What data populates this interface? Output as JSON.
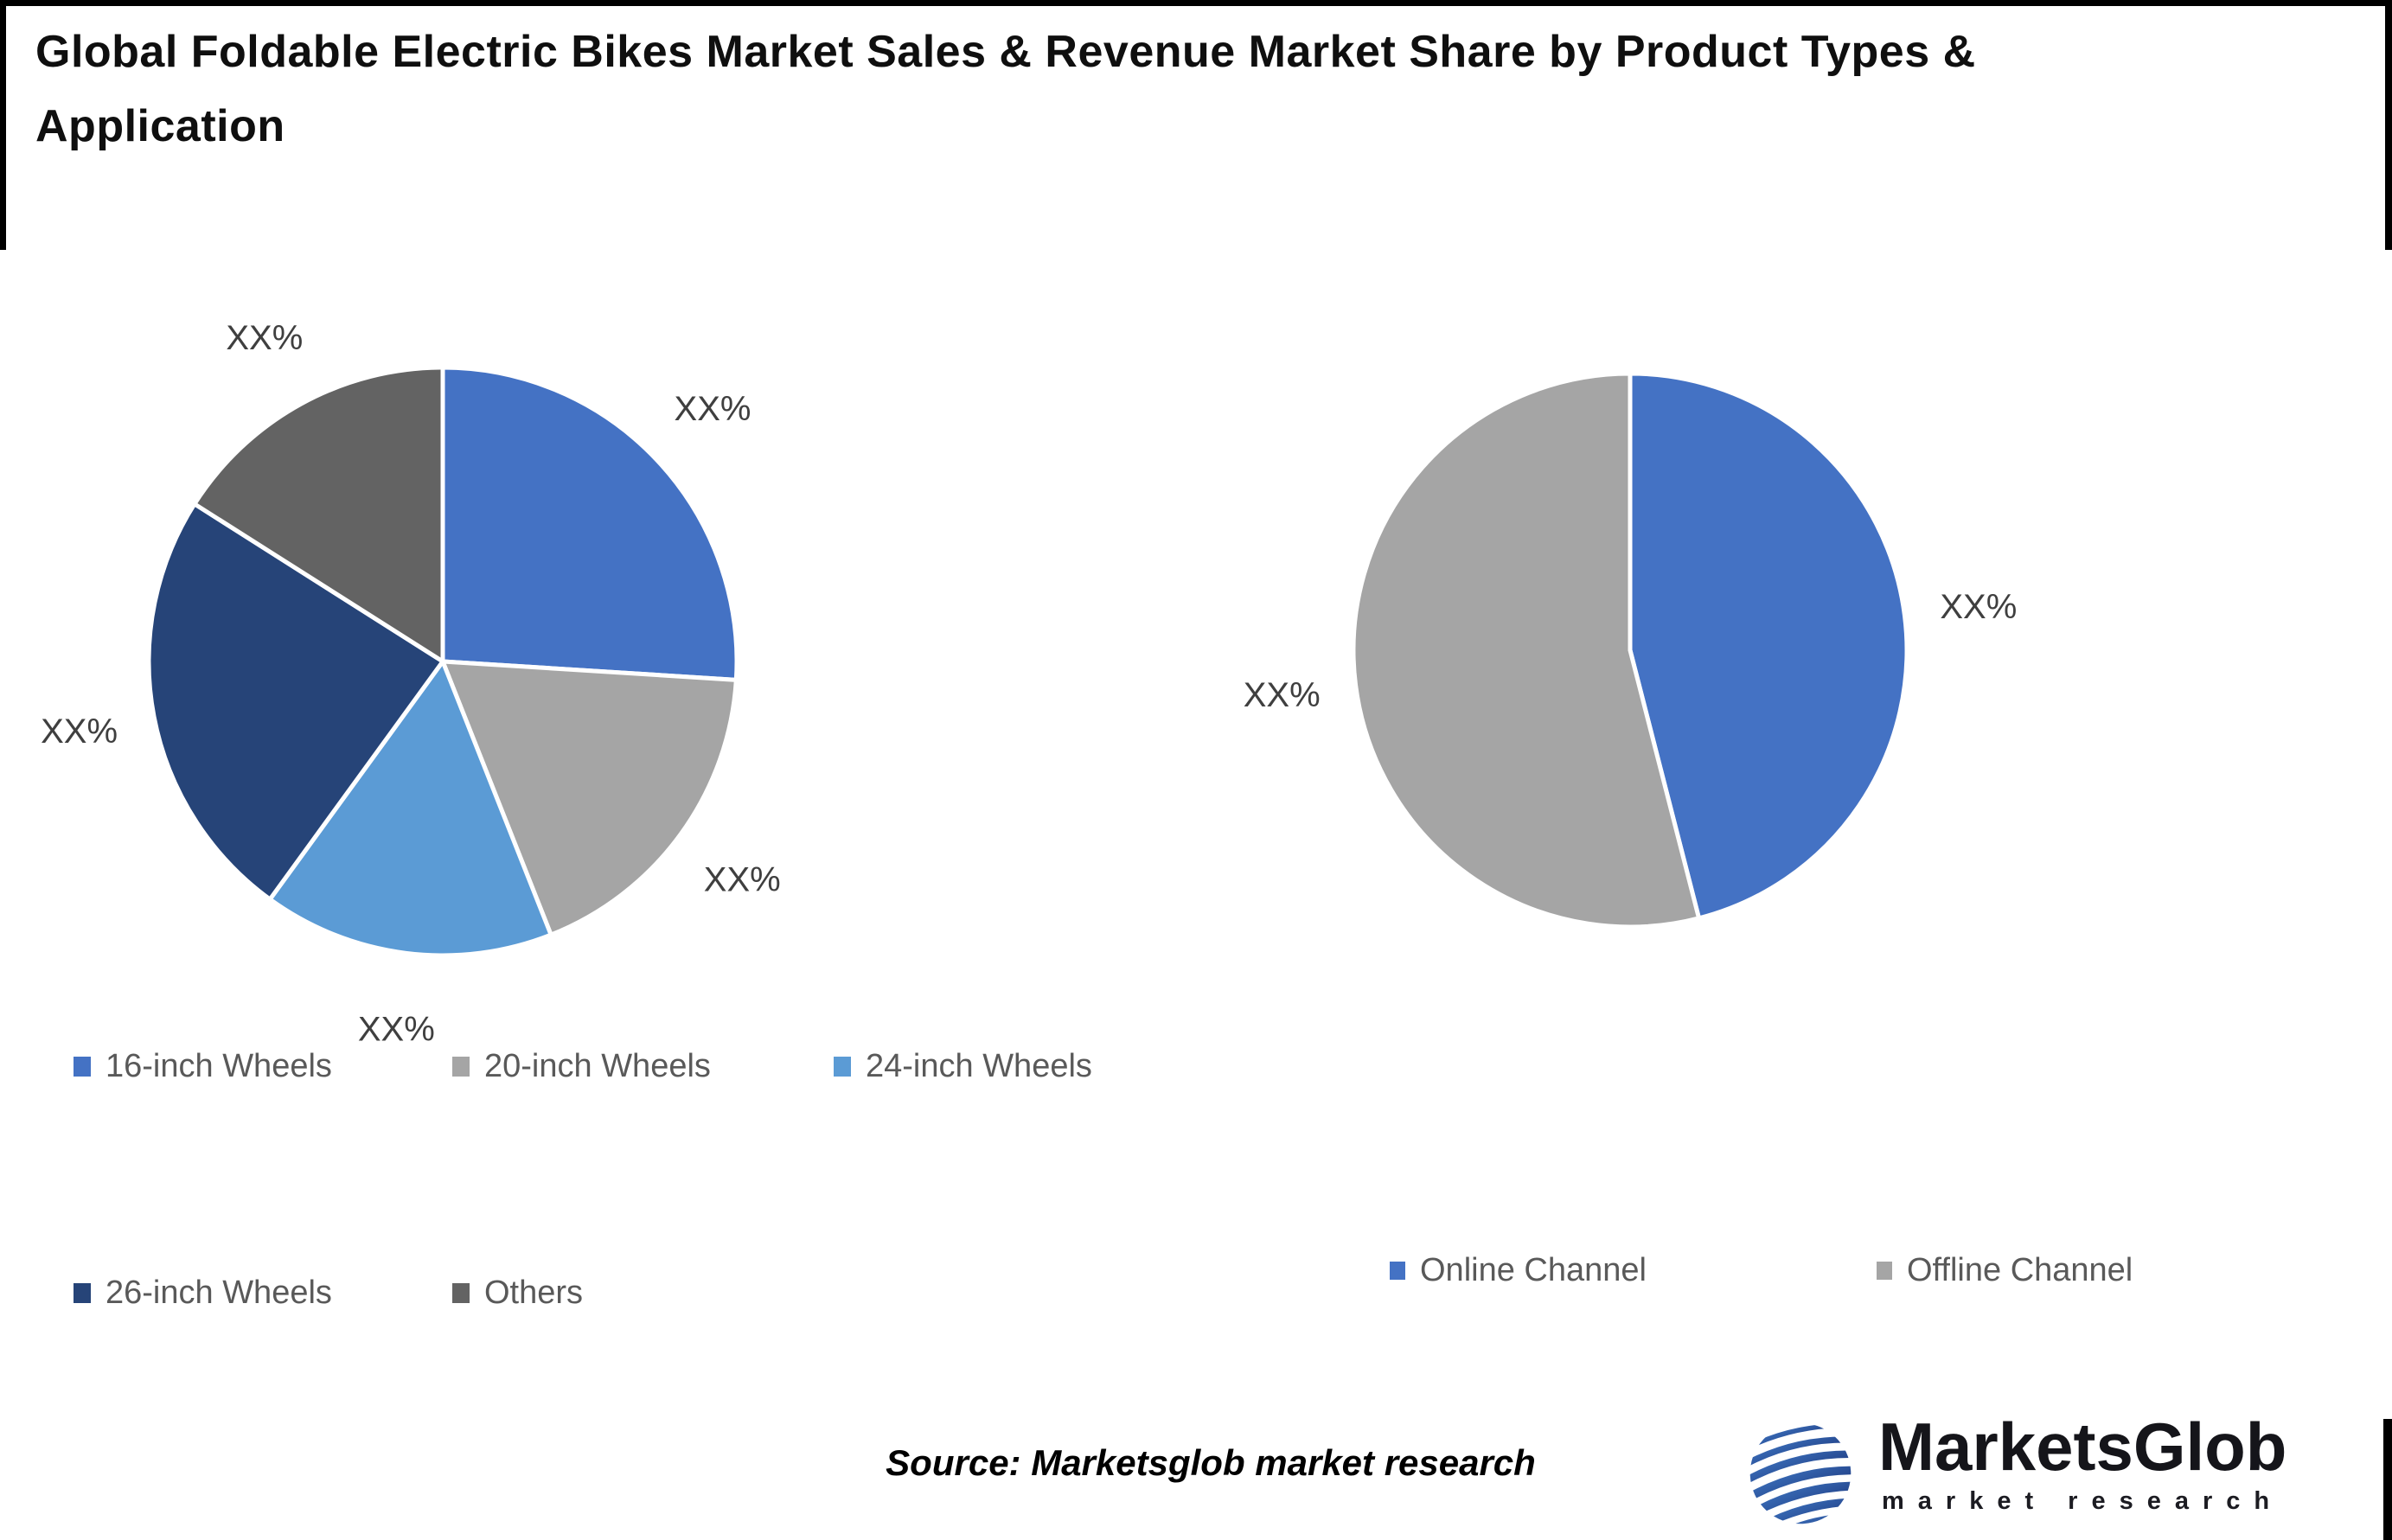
{
  "header": {
    "title_full": "Global Foldable Electric Bikes Market Sales & Revenue Market Share by Product Types & Application",
    "title_line1": "Global Foldable Electric Bikes Market Sales & Revenue Market Share by Product Types &",
    "title_line2": "Application"
  },
  "colors": {
    "accent_blue": "#4472C4",
    "gray": "#A5A5A5",
    "light_blue": "#5B9BD5",
    "navy": "#264478",
    "dark_gray": "#636363",
    "legend_text": "#595959",
    "label_text": "#3F3F3F"
  },
  "chart_data": [
    {
      "type": "pie",
      "name": "sales-share-by-product-type",
      "legend_position": "bottom-left, two rows",
      "slices": [
        {
          "label": "16-inch Wheels",
          "value_label": "XX%",
          "percent": 26,
          "color": "#4472C4"
        },
        {
          "label": "20-inch Wheels",
          "value_label": "XX%",
          "percent": 18,
          "color": "#A5A5A5"
        },
        {
          "label": "24-inch Wheels",
          "value_label": "XX%",
          "percent": 16,
          "color": "#5B9BD5"
        },
        {
          "label": "26-inch Wheels",
          "value_label": "XX%",
          "percent": 24,
          "color": "#264478"
        },
        {
          "label": "Others",
          "value_label": "XX%",
          "percent": 16,
          "color": "#636363"
        }
      ]
    },
    {
      "type": "pie",
      "name": "revenue-share-by-application",
      "legend_position": "bottom, one row",
      "slices": [
        {
          "label": "Online Channel",
          "value_label": "XX%",
          "percent": 46,
          "color": "#4472C4"
        },
        {
          "label": "Offline Channel",
          "value_label": "XX%",
          "percent": 54,
          "color": "#A5A5A5"
        }
      ]
    }
  ],
  "footer": {
    "source_note": "Source: Marketsglob market research",
    "logo_name": "MarketsGlob",
    "logo_tagline": "m a r k e t   r e s e a r c h",
    "logo_icon": "globe-icon"
  }
}
